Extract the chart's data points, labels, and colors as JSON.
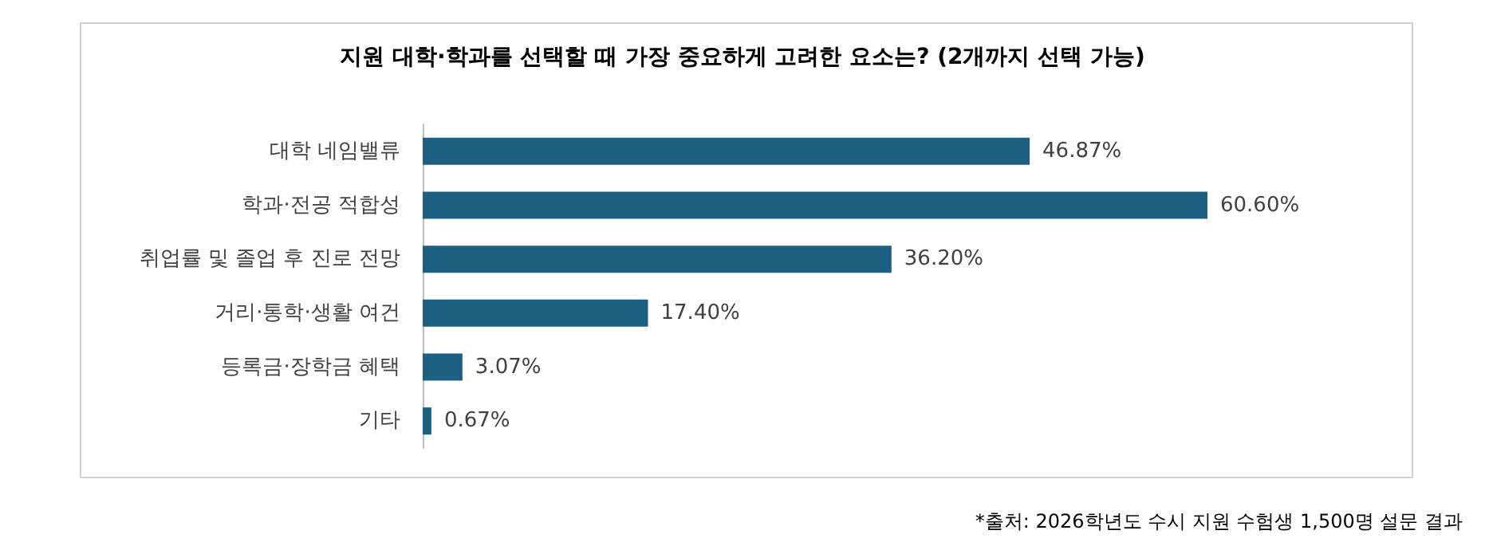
{
  "chart_data": {
    "type": "bar",
    "orientation": "horizontal",
    "title": "지원 대학·학과를 선택할 때 가장 중요하게 고려한 요소는? (2개까지 선택 가능)",
    "categories": [
      "대학 네임밸류",
      "학과·전공 적합성",
      "취업률 및 졸업 후 진로 전망",
      "거리·통학·생활 여건",
      "등록금·장학금 혜택",
      "기타"
    ],
    "values": [
      46.87,
      60.6,
      36.2,
      17.4,
      3.07,
      0.67
    ],
    "value_labels": [
      "46.87%",
      "60.60%",
      "36.20%",
      "17.40%",
      "3.07%",
      "0.67%"
    ],
    "color": "#1d5f80",
    "tick_labels": "y",
    "annotations": [
      "*출처: 2026학년도 수시 지원 수험생 1,500명 설문 결과"
    ]
  }
}
